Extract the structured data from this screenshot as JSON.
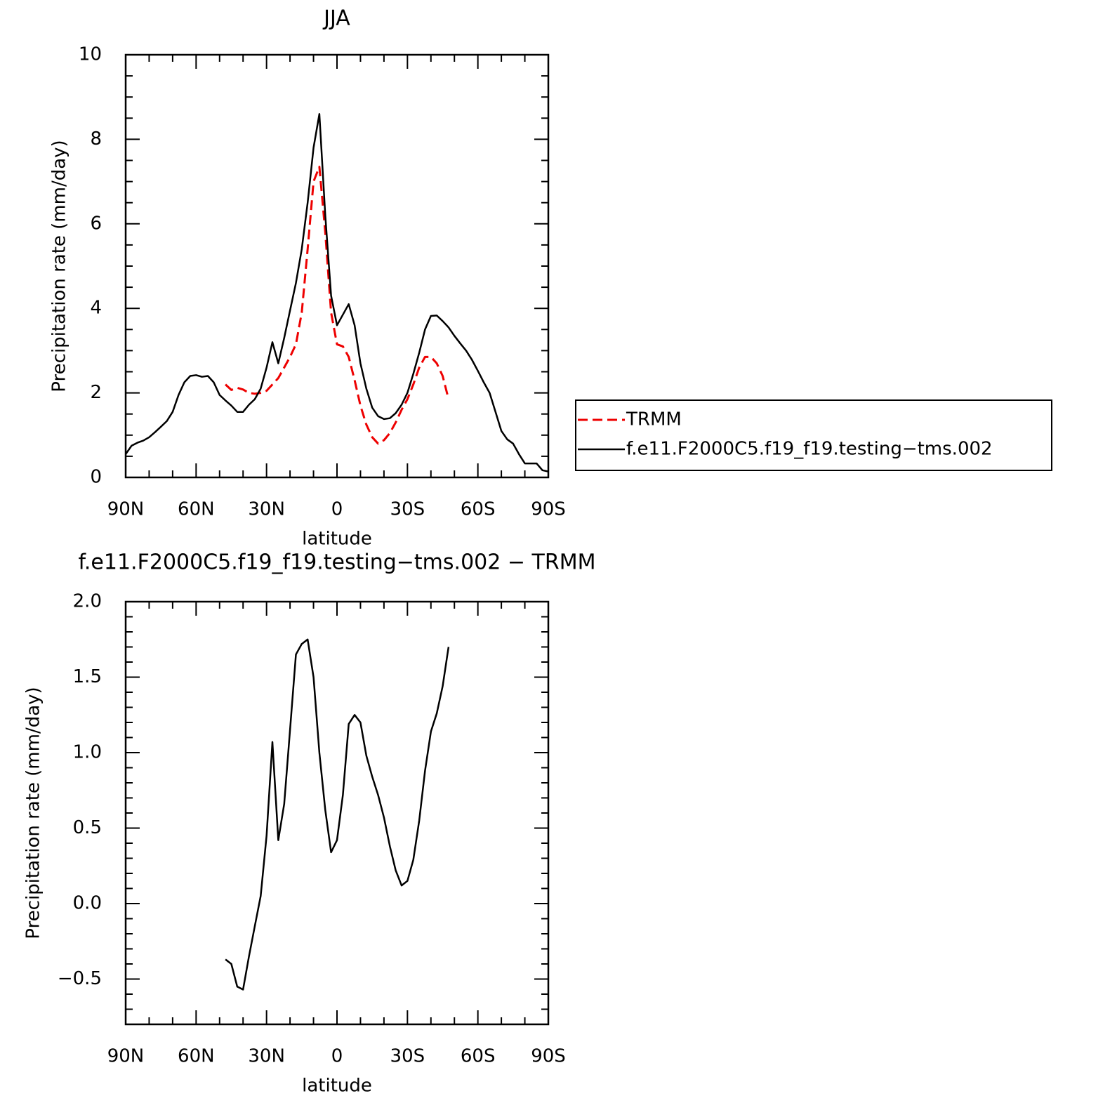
{
  "chart_data": [
    {
      "type": "line",
      "title": "JJA",
      "xlabel": "latitude",
      "ylabel": "Precipitation rate (mm/day)",
      "x": [
        90,
        87.5,
        85,
        82.5,
        80,
        77.5,
        75,
        72.5,
        70,
        67.5,
        65,
        62.5,
        60,
        57.5,
        55,
        52.5,
        50,
        47.5,
        45,
        42.5,
        40,
        37.5,
        35,
        32.5,
        30,
        27.5,
        25,
        22.5,
        20,
        17.5,
        15,
        12.5,
        10,
        7.5,
        5,
        2.5,
        0,
        -2.5,
        -5,
        -7.5,
        -10,
        -12.5,
        -15,
        -17.5,
        -20,
        -22.5,
        -25,
        -27.5,
        -30,
        -32.5,
        -35,
        -37.5,
        -40,
        -42.5,
        -45,
        -47.5,
        -50,
        -52.5,
        -55,
        -57.5,
        -60,
        -62.5,
        -65,
        -67.5,
        -70,
        -72.5,
        -75,
        -77.5,
        -80,
        -82.5,
        -85,
        -87.5,
        -90
      ],
      "series": [
        {
          "name": "TRMM",
          "color": "#ee0000",
          "dash": true,
          "values": [
            null,
            null,
            null,
            null,
            null,
            null,
            null,
            null,
            null,
            null,
            null,
            null,
            null,
            null,
            null,
            null,
            null,
            2.2,
            2.07,
            2.12,
            2.08,
            2.0,
            1.98,
            2.0,
            2.05,
            2.2,
            2.35,
            2.6,
            2.85,
            3.15,
            3.9,
            5.4,
            7.0,
            7.35,
            5.8,
            3.9,
            3.15,
            3.1,
            2.85,
            2.3,
            1.7,
            1.25,
            0.95,
            0.8,
            0.88,
            1.05,
            1.3,
            1.6,
            1.85,
            2.2,
            2.6,
            2.85,
            2.85,
            2.7,
            2.4,
            1.85,
            null,
            null,
            null,
            null,
            null,
            null,
            null,
            null,
            null,
            null,
            null,
            null,
            null,
            null,
            null,
            null,
            null
          ]
        },
        {
          "name": "f.e11.F2000C5.f19_f19.testing−tms.002",
          "color": "#000000",
          "dash": false,
          "values": [
            0.55,
            0.75,
            0.82,
            0.87,
            0.95,
            1.07,
            1.2,
            1.33,
            1.55,
            1.95,
            2.25,
            2.4,
            2.42,
            2.38,
            2.4,
            2.25,
            1.95,
            1.82,
            1.7,
            1.55,
            1.55,
            1.72,
            1.85,
            2.1,
            2.6,
            3.2,
            2.7,
            3.3,
            3.95,
            4.6,
            5.4,
            6.5,
            7.8,
            8.6,
            6.2,
            4.3,
            3.6,
            3.85,
            4.1,
            3.6,
            2.7,
            2.1,
            1.65,
            1.45,
            1.38,
            1.4,
            1.52,
            1.72,
            2.0,
            2.45,
            2.95,
            3.5,
            3.82,
            3.83,
            3.7,
            3.55,
            3.35,
            3.17,
            3.0,
            2.78,
            2.52,
            2.25,
            2.0,
            1.55,
            1.1,
            0.9,
            0.8,
            0.55,
            0.33,
            0.33,
            0.33,
            0.17,
            0.14
          ]
        }
      ],
      "xlim": [
        90,
        -90
      ],
      "xticks": [
        {
          "value": 90,
          "label": "90N"
        },
        {
          "value": 60,
          "label": "60N"
        },
        {
          "value": 30,
          "label": "30N"
        },
        0,
        {
          "value": -30,
          "label": "30S"
        },
        {
          "value": -60,
          "label": "60S"
        },
        {
          "value": -90,
          "label": "90S"
        }
      ],
      "xminor": [
        80,
        70,
        50,
        40,
        20,
        10,
        -10,
        -20,
        -40,
        -50,
        -70,
        -80
      ],
      "ylim": [
        0,
        10
      ],
      "yticks": [
        0,
        2,
        4,
        6,
        8,
        10
      ],
      "yminor": [
        0.5,
        1,
        1.5,
        2.5,
        3,
        3.5,
        4.5,
        5,
        5.5,
        6.5,
        7,
        7.5,
        8.5,
        9,
        9.5
      ],
      "legend": "right"
    },
    {
      "type": "line",
      "title": "f.e11.F2000C5.f19_f19.testing−tms.002 − TRMM",
      "xlabel": "latitude",
      "ylabel": "Precipitation rate (mm/day)",
      "x": [
        47.5,
        45,
        42.5,
        40,
        37.5,
        35,
        32.5,
        30,
        27.5,
        25,
        22.5,
        20,
        17.5,
        15,
        12.5,
        10,
        7.5,
        5,
        2.5,
        0,
        -2.5,
        -5,
        -7.5,
        -10,
        -12.5,
        -15,
        -17.5,
        -20,
        -22.5,
        -25,
        -27.5,
        -30,
        -32.5,
        -35,
        -37.5,
        -40,
        -42.5,
        -45,
        -47.5
      ],
      "series": [
        {
          "color": "#000000",
          "dash": false,
          "values": [
            -0.37,
            -0.4,
            -0.55,
            -0.57,
            -0.35,
            -0.15,
            0.05,
            0.45,
            1.07,
            0.42,
            0.66,
            1.15,
            1.65,
            1.72,
            1.75,
            1.5,
            1.0,
            0.62,
            0.34,
            0.42,
            0.72,
            1.19,
            1.25,
            1.2,
            0.98,
            0.84,
            0.72,
            0.57,
            0.38,
            0.22,
            0.12,
            0.15,
            0.29,
            0.55,
            0.88,
            1.14,
            1.26,
            1.44,
            1.7
          ]
        }
      ],
      "xlim": [
        90,
        -90
      ],
      "xticks": [
        {
          "value": 90,
          "label": "90N"
        },
        {
          "value": 60,
          "label": "60N"
        },
        {
          "value": 30,
          "label": "30N"
        },
        0,
        {
          "value": -30,
          "label": "30S"
        },
        {
          "value": -60,
          "label": "60S"
        },
        {
          "value": -90,
          "label": "90S"
        }
      ],
      "xminor": [
        80,
        70,
        50,
        40,
        20,
        10,
        -10,
        -20,
        -40,
        -50,
        -70,
        -80
      ],
      "ylim": [
        -0.8,
        2.0
      ],
      "yticks": [
        {
          "value": -0.5,
          "label": "−0.5"
        },
        {
          "value": 0,
          "label": "0.0"
        },
        {
          "value": 0.5,
          "label": "0.5"
        },
        {
          "value": 1,
          "label": "1.0"
        },
        {
          "value": 1.5,
          "label": "1.5"
        },
        {
          "value": 2,
          "label": "2.0"
        }
      ],
      "yminor": [
        -0.7,
        -0.6,
        -0.4,
        -0.3,
        -0.2,
        -0.1,
        0.1,
        0.2,
        0.3,
        0.4,
        0.6,
        0.7,
        0.8,
        0.9,
        1.1,
        1.2,
        1.3,
        1.4,
        1.6,
        1.7,
        1.8,
        1.9
      ]
    }
  ]
}
